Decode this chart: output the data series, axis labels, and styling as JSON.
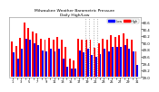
{
  "title": "Milwaukee Weather Barometric Pressure",
  "subtitle": "Daily High/Low",
  "legend_high": "High",
  "legend_low": "Low",
  "color_high": "#ff0000",
  "color_low": "#0000ff",
  "background_color": "#ffffff",
  "plot_bg": "#ffffff",
  "ylim": [
    29.0,
    30.75
  ],
  "yticks": [
    29.0,
    29.2,
    29.4,
    29.6,
    29.8,
    30.0,
    30.2,
    30.4,
    30.6
  ],
  "ytick_labels": [
    "29.0",
    "29.2",
    "29.4",
    "29.6",
    "29.8",
    "30.0",
    "30.2",
    "30.4",
    "30.6"
  ],
  "days": [
    1,
    2,
    3,
    4,
    5,
    6,
    7,
    8,
    9,
    10,
    11,
    12,
    13,
    14,
    15,
    16,
    17,
    18,
    19,
    20,
    21,
    22,
    23,
    24,
    25,
    26,
    27,
    28,
    29,
    30,
    31
  ],
  "highs": [
    30.05,
    29.9,
    30.15,
    30.6,
    30.42,
    30.32,
    30.28,
    30.12,
    30.08,
    30.14,
    30.08,
    30.18,
    30.08,
    29.88,
    29.55,
    29.48,
    30.12,
    30.08,
    30.1,
    30.08,
    29.85,
    29.98,
    30.12,
    30.08,
    30.22,
    30.18,
    30.22,
    30.28,
    30.12,
    30.08,
    29.75
  ],
  "lows": [
    29.72,
    29.55,
    29.82,
    30.12,
    30.08,
    29.98,
    29.92,
    29.78,
    29.76,
    29.82,
    29.76,
    29.82,
    29.55,
    29.3,
    29.25,
    29.25,
    29.78,
    29.72,
    29.82,
    29.65,
    29.6,
    29.68,
    29.82,
    29.76,
    29.88,
    29.88,
    29.88,
    29.92,
    29.82,
    29.76,
    29.35
  ],
  "vlines": [
    18.5,
    19.5,
    20.5,
    21.5
  ],
  "vline_color": "#aaaaaa",
  "vline_style": ":",
  "bar_width": 0.42,
  "baseline": 29.0,
  "left_label_color": "#333333",
  "border_color": "#888888"
}
